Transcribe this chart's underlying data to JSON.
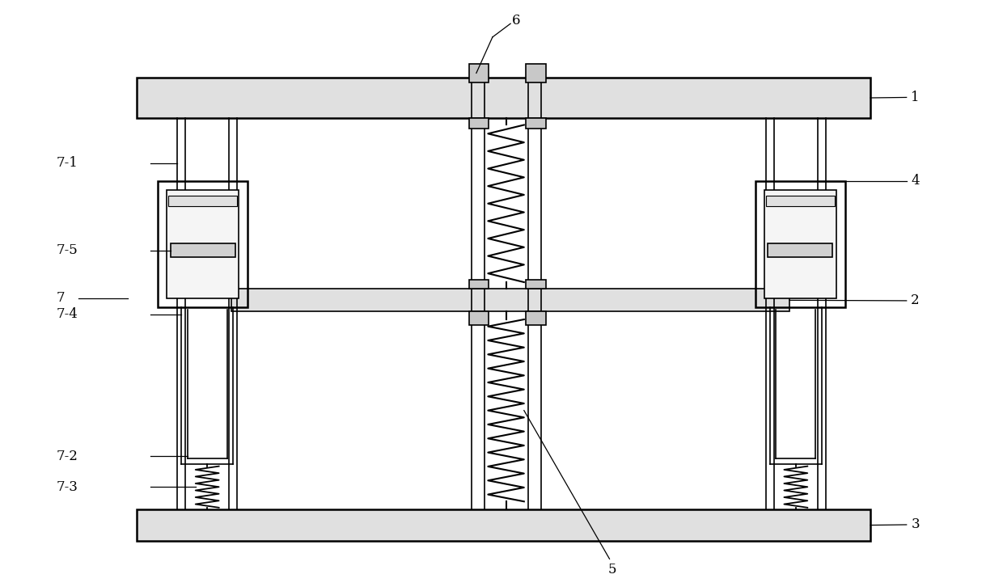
{
  "bg_color": "#ffffff",
  "line_color": "#000000",
  "fig_width": 12.4,
  "fig_height": 7.26,
  "lw_thin": 0.8,
  "lw_main": 1.2,
  "lw_thick": 1.8
}
